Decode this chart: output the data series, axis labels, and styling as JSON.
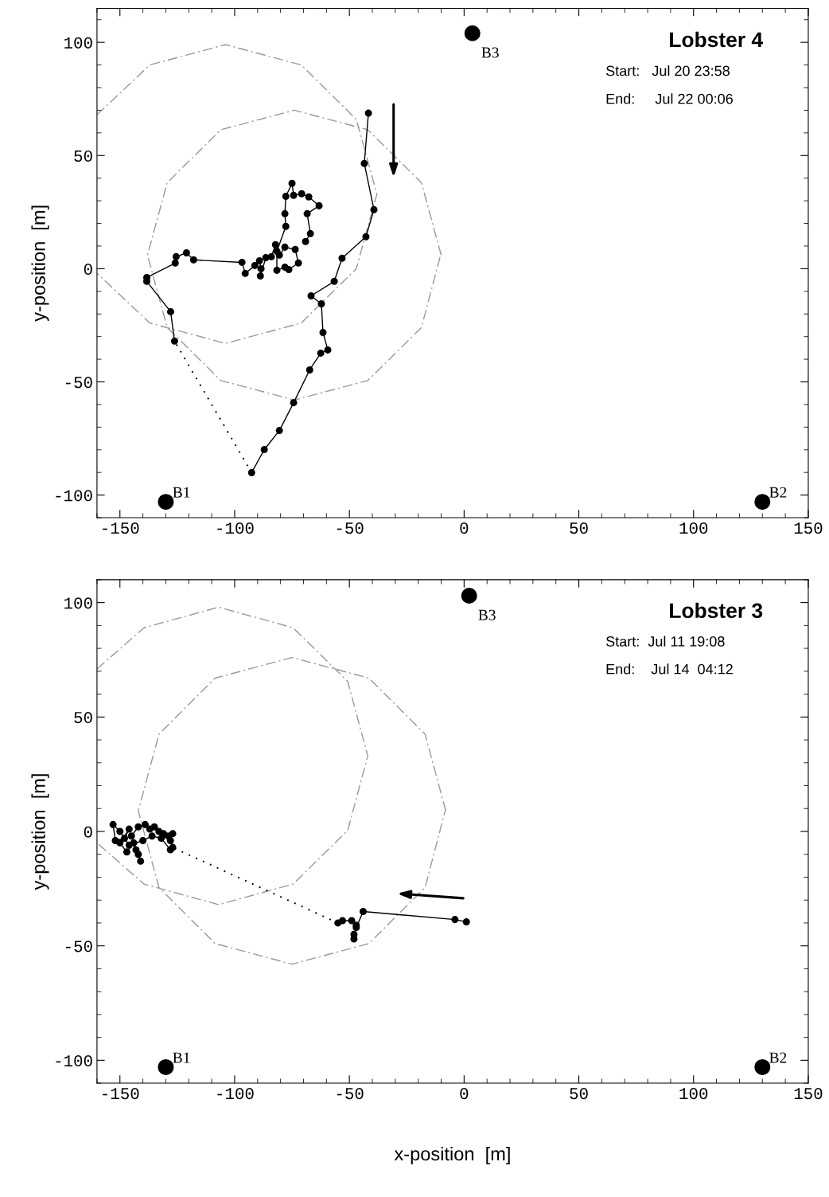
{
  "chart_data": [
    {
      "type": "line",
      "title": "Lobster 4",
      "ylabel": "y-position  [m]",
      "xlim": [
        -160,
        150
      ],
      "ylim": [
        -110,
        115
      ],
      "xticks": [
        -150,
        -100,
        -50,
        0,
        50,
        100,
        150
      ],
      "yticks": [
        -100,
        -50,
        0,
        50,
        100
      ],
      "annotations": [
        "Start:   Jul 20 23:58",
        "End:     Jul 22 00:06",
        {
          "text": "B1",
          "x": -130,
          "y": -103
        },
        {
          "text": "B2",
          "x": 130,
          "y": -103
        },
        {
          "text": "B3",
          "x": 3.6,
          "y": 104
        }
      ],
      "series": [
        {
          "color": "#999999",
          "line_style": "dashed",
          "marker": "none",
          "x": [
            -160,
            -137,
            -104,
            -71,
            -47,
            -38,
            -47,
            -71,
            -104,
            -137,
            -160
          ],
          "values": [
            68,
            90,
            99,
            90,
            66,
            33,
            0,
            -24,
            -33,
            -24,
            -2
          ]
        },
        {
          "color": "#999999",
          "line_style": "dashed",
          "marker": "none",
          "x": [
            -10,
            -18.6,
            -42,
            -74,
            -106,
            -129.4,
            -138,
            -129.4,
            -106,
            -74,
            -42,
            -18.6,
            -10
          ],
          "values": [
            6,
            38,
            61.4,
            70,
            61.4,
            38,
            6,
            -26,
            -49.4,
            -58,
            -49.4,
            -26,
            7
          ]
        },
        {
          "color": "#000000",
          "line_style": "solid",
          "marker": "circle",
          "x": [
            -41.7,
            -43.5,
            -39.3,
            -42.8,
            -53.2,
            -56.6,
            -66.7,
            -62.2,
            -61.5,
            -59.4,
            -62.5,
            -67.3,
            -74.3,
            -80.5,
            -87.1,
            -92.6
          ],
          "values": [
            68.7,
            46.5,
            26.1,
            14.1,
            4.6,
            -5.6,
            -12.0,
            -15.5,
            -28.2,
            -35.9,
            -37.3,
            -44.7,
            -59.2,
            -71.5,
            -79.9,
            -90.1
          ]
        },
        {
          "color": "#000000",
          "line_style": "dotted",
          "marker": "none",
          "x": [
            -92.6,
            -126.2
          ],
          "values": [
            -90.1,
            -32.0
          ]
        },
        {
          "color": "#000000",
          "line_style": "solid",
          "marker": "circle",
          "x": [
            -126.2,
            -127.9,
            -138.3,
            -138.3,
            -125.9,
            -125.5,
            -121,
            -117.9,
            -96.8,
            -95.4,
            -91.2,
            -89.2,
            -88.5,
            -88.8,
            -86.4,
            -84,
            -82.2,
            -80.5,
            -78.1,
            -73.6,
            -72.2,
            -76.4,
            -78.1,
            -81.6,
            -81.6,
            -77.7,
            -78.1,
            -77.7,
            -75,
            -74.3,
            -70.8,
            -67.7,
            -63.2,
            -68.4,
            -67,
            -69.1
          ],
          "values": [
            -32.0,
            -19.0,
            -5.6,
            -3.9,
            2.5,
            5.3,
            7.0,
            3.9,
            2.8,
            -2.1,
            1.4,
            3.5,
            0,
            -3.2,
            4.9,
            5.3,
            10.6,
            6,
            9.5,
            8.5,
            2.5,
            -0.4,
            0.7,
            -0.7,
            7.7,
            18.7,
            24.3,
            32,
            37.7,
            32.4,
            33.1,
            31.7,
            27.8,
            24.3,
            15.5,
            12
          ]
        },
        {
          "type": "scatter",
          "color": "#000000",
          "marker": "circle",
          "x": [
            -130,
            130,
            3.6
          ],
          "values": [
            -103,
            -103,
            104
          ]
        }
      ]
    },
    {
      "type": "line",
      "title": "Lobster 3",
      "xlabel": "x-position  [m]",
      "ylabel": "y-position  [m]",
      "xlim": [
        -160,
        150
      ],
      "ylim": [
        -110,
        110
      ],
      "xticks": [
        -150,
        -100,
        -50,
        0,
        50,
        100,
        150
      ],
      "yticks": [
        -100,
        -50,
        0,
        50,
        100
      ],
      "annotations": [
        "Start:  Jul 11 19:08",
        "End:    Jul 14  04:12",
        {
          "text": "B1",
          "x": -130,
          "y": -103
        },
        {
          "text": "B2",
          "x": 130,
          "y": -103
        },
        {
          "text": "B3",
          "x": 2.2,
          "y": 103
        }
      ],
      "series": [
        {
          "color": "#999999",
          "line_style": "dashed",
          "marker": "none",
          "x": [
            -160,
            -139.5,
            -107,
            -74.5,
            -50.7,
            -42,
            -50.7,
            -74.5,
            -107,
            -139.5,
            -160
          ],
          "values": [
            71,
            89,
            98,
            89,
            65.5,
            33,
            0.5,
            -23,
            -32,
            -23,
            -5
          ]
        },
        {
          "color": "#999999",
          "line_style": "dashed",
          "marker": "none",
          "x": [
            -8,
            -17,
            -41.5,
            -75,
            -108.5,
            -133,
            -142,
            -133,
            -108.5,
            -75,
            -41.5,
            -17,
            -8
          ],
          "values": [
            9,
            42.5,
            67,
            76,
            67,
            42.5,
            9,
            -24.5,
            -49,
            -58,
            -49,
            -24.5,
            10
          ]
        },
        {
          "color": "#000000",
          "line_style": "solid",
          "marker": "circle",
          "x": [
            1,
            -4,
            -44,
            -47,
            -48,
            -48,
            -47,
            -49,
            -53,
            -55
          ],
          "values": [
            -39.5,
            -38.5,
            -35,
            -42,
            -45,
            -47,
            -41,
            -39,
            -39,
            -40
          ]
        },
        {
          "color": "#000000",
          "line_style": "dotted",
          "marker": "none",
          "x": [
            -55,
            -127
          ],
          "values": [
            -40,
            -7
          ]
        },
        {
          "color": "#000000",
          "line_style": "solid",
          "marker": "circle",
          "x": [
            -127,
            -128,
            -127,
            -129,
            -131,
            -133,
            -135,
            -137,
            -139,
            -142,
            -145,
            -143,
            -141,
            -142,
            -144,
            -147,
            -150,
            -146,
            -148,
            -152,
            -153,
            -150,
            -146,
            -140,
            -136,
            -132,
            -128
          ],
          "values": [
            -7,
            -4,
            -1,
            -2,
            -1,
            0,
            2,
            1,
            3,
            2,
            -2,
            -8,
            -13,
            -10,
            -5,
            -9,
            -5,
            1,
            -3,
            -4,
            3,
            0,
            -6,
            -4,
            -2,
            -3,
            -8
          ]
        },
        {
          "type": "scatter",
          "color": "#000000",
          "marker": "circle",
          "x": [
            -130,
            130,
            2.2
          ],
          "values": [
            -103,
            -103,
            103
          ]
        }
      ]
    }
  ]
}
